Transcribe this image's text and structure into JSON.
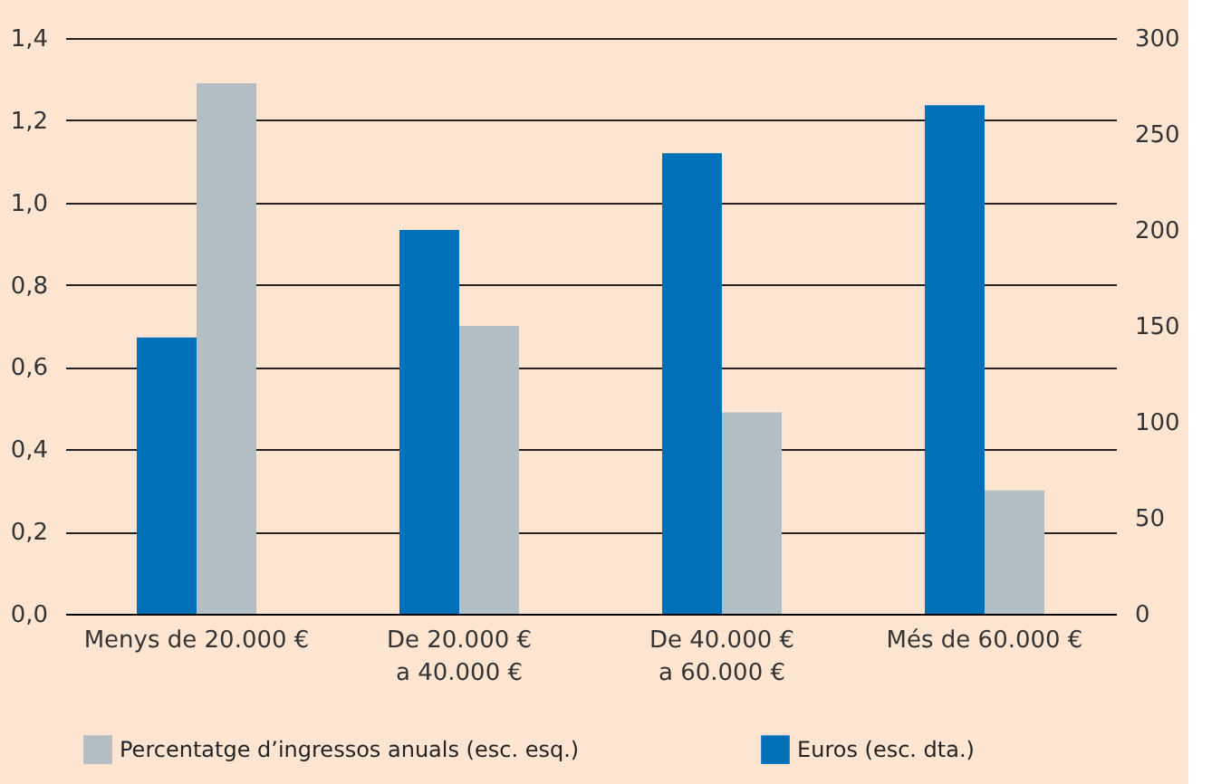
{
  "chart_data": {
    "type": "bar",
    "categories": [
      "Menys de 20.000 €",
      "De 20.000 €\na 40.000 €",
      "De 40.000 €\na 60.000 €",
      "Més de 60.000 €"
    ],
    "series": [
      {
        "name": "Percentatge d’ingressos anuals (esc. esq.)",
        "color": "#b3bec4",
        "values": [
          1.29,
          0.7,
          0.49,
          0.3
        ],
        "axis": "y"
      },
      {
        "name": "Euros (esc. dta.)",
        "color": "#0070b8",
        "values": [
          144,
          200,
          240,
          265
        ],
        "axis": "y2"
      }
    ],
    "ylim": [
      0,
      1.4
    ],
    "yticks": [
      {
        "value": 0,
        "label": "0,0"
      },
      {
        "value": 0.2,
        "label": "0,2"
      },
      {
        "value": 0.4,
        "label": "0,4"
      },
      {
        "value": 0.6,
        "label": "0,6"
      },
      {
        "value": 0.8,
        "label": "0,8"
      },
      {
        "value": 1.0,
        "label": "1,0"
      },
      {
        "value": 1.2,
        "label": "1,2"
      },
      {
        "value": 1.4,
        "label": "1,4"
      }
    ],
    "y2lim": [
      0,
      300
    ],
    "y2ticks": [
      0,
      50,
      100,
      150,
      200,
      250,
      300
    ],
    "grid": "y",
    "legend": "bottom"
  }
}
